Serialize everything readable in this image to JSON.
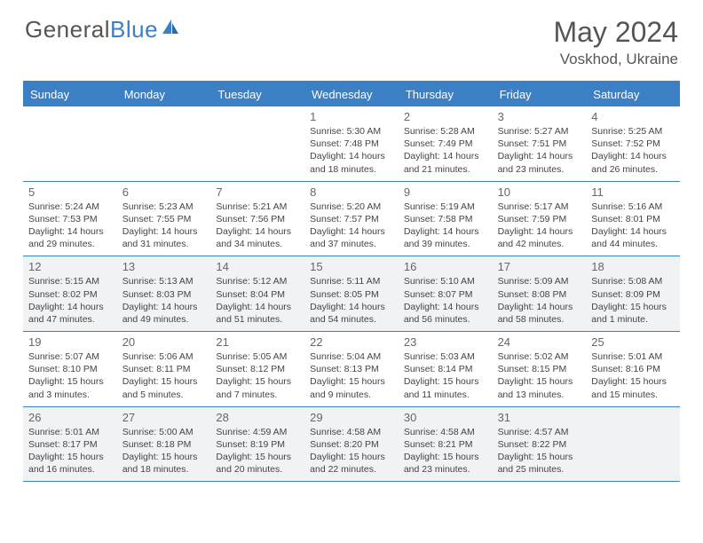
{
  "logo": {
    "text1": "General",
    "text2": "Blue"
  },
  "title": {
    "month": "May 2024",
    "location": "Voskhod, Ukraine"
  },
  "colors": {
    "accent": "#3b7fc4",
    "shade": "#f1f2f4",
    "text": "#555555"
  },
  "dayHeaders": [
    "Sunday",
    "Monday",
    "Tuesday",
    "Wednesday",
    "Thursday",
    "Friday",
    "Saturday"
  ],
  "weeks": [
    [
      {
        "day": "",
        "sunrise": "",
        "sunset": "",
        "daylight": "",
        "shade": false
      },
      {
        "day": "",
        "sunrise": "",
        "sunset": "",
        "daylight": "",
        "shade": false
      },
      {
        "day": "",
        "sunrise": "",
        "sunset": "",
        "daylight": "",
        "shade": false
      },
      {
        "day": "1",
        "sunrise": "Sunrise: 5:30 AM",
        "sunset": "Sunset: 7:48 PM",
        "daylight": "Daylight: 14 hours and 18 minutes.",
        "shade": false
      },
      {
        "day": "2",
        "sunrise": "Sunrise: 5:28 AM",
        "sunset": "Sunset: 7:49 PM",
        "daylight": "Daylight: 14 hours and 21 minutes.",
        "shade": false
      },
      {
        "day": "3",
        "sunrise": "Sunrise: 5:27 AM",
        "sunset": "Sunset: 7:51 PM",
        "daylight": "Daylight: 14 hours and 23 minutes.",
        "shade": false
      },
      {
        "day": "4",
        "sunrise": "Sunrise: 5:25 AM",
        "sunset": "Sunset: 7:52 PM",
        "daylight": "Daylight: 14 hours and 26 minutes.",
        "shade": false
      }
    ],
    [
      {
        "day": "5",
        "sunrise": "Sunrise: 5:24 AM",
        "sunset": "Sunset: 7:53 PM",
        "daylight": "Daylight: 14 hours and 29 minutes.",
        "shade": false
      },
      {
        "day": "6",
        "sunrise": "Sunrise: 5:23 AM",
        "sunset": "Sunset: 7:55 PM",
        "daylight": "Daylight: 14 hours and 31 minutes.",
        "shade": false
      },
      {
        "day": "7",
        "sunrise": "Sunrise: 5:21 AM",
        "sunset": "Sunset: 7:56 PM",
        "daylight": "Daylight: 14 hours and 34 minutes.",
        "shade": false
      },
      {
        "day": "8",
        "sunrise": "Sunrise: 5:20 AM",
        "sunset": "Sunset: 7:57 PM",
        "daylight": "Daylight: 14 hours and 37 minutes.",
        "shade": false
      },
      {
        "day": "9",
        "sunrise": "Sunrise: 5:19 AM",
        "sunset": "Sunset: 7:58 PM",
        "daylight": "Daylight: 14 hours and 39 minutes.",
        "shade": false
      },
      {
        "day": "10",
        "sunrise": "Sunrise: 5:17 AM",
        "sunset": "Sunset: 7:59 PM",
        "daylight": "Daylight: 14 hours and 42 minutes.",
        "shade": false
      },
      {
        "day": "11",
        "sunrise": "Sunrise: 5:16 AM",
        "sunset": "Sunset: 8:01 PM",
        "daylight": "Daylight: 14 hours and 44 minutes.",
        "shade": false
      }
    ],
    [
      {
        "day": "12",
        "sunrise": "Sunrise: 5:15 AM",
        "sunset": "Sunset: 8:02 PM",
        "daylight": "Daylight: 14 hours and 47 minutes.",
        "shade": true
      },
      {
        "day": "13",
        "sunrise": "Sunrise: 5:13 AM",
        "sunset": "Sunset: 8:03 PM",
        "daylight": "Daylight: 14 hours and 49 minutes.",
        "shade": true
      },
      {
        "day": "14",
        "sunrise": "Sunrise: 5:12 AM",
        "sunset": "Sunset: 8:04 PM",
        "daylight": "Daylight: 14 hours and 51 minutes.",
        "shade": true
      },
      {
        "day": "15",
        "sunrise": "Sunrise: 5:11 AM",
        "sunset": "Sunset: 8:05 PM",
        "daylight": "Daylight: 14 hours and 54 minutes.",
        "shade": true
      },
      {
        "day": "16",
        "sunrise": "Sunrise: 5:10 AM",
        "sunset": "Sunset: 8:07 PM",
        "daylight": "Daylight: 14 hours and 56 minutes.",
        "shade": true
      },
      {
        "day": "17",
        "sunrise": "Sunrise: 5:09 AM",
        "sunset": "Sunset: 8:08 PM",
        "daylight": "Daylight: 14 hours and 58 minutes.",
        "shade": true
      },
      {
        "day": "18",
        "sunrise": "Sunrise: 5:08 AM",
        "sunset": "Sunset: 8:09 PM",
        "daylight": "Daylight: 15 hours and 1 minute.",
        "shade": true
      }
    ],
    [
      {
        "day": "19",
        "sunrise": "Sunrise: 5:07 AM",
        "sunset": "Sunset: 8:10 PM",
        "daylight": "Daylight: 15 hours and 3 minutes.",
        "shade": false
      },
      {
        "day": "20",
        "sunrise": "Sunrise: 5:06 AM",
        "sunset": "Sunset: 8:11 PM",
        "daylight": "Daylight: 15 hours and 5 minutes.",
        "shade": false
      },
      {
        "day": "21",
        "sunrise": "Sunrise: 5:05 AM",
        "sunset": "Sunset: 8:12 PM",
        "daylight": "Daylight: 15 hours and 7 minutes.",
        "shade": false
      },
      {
        "day": "22",
        "sunrise": "Sunrise: 5:04 AM",
        "sunset": "Sunset: 8:13 PM",
        "daylight": "Daylight: 15 hours and 9 minutes.",
        "shade": false
      },
      {
        "day": "23",
        "sunrise": "Sunrise: 5:03 AM",
        "sunset": "Sunset: 8:14 PM",
        "daylight": "Daylight: 15 hours and 11 minutes.",
        "shade": false
      },
      {
        "day": "24",
        "sunrise": "Sunrise: 5:02 AM",
        "sunset": "Sunset: 8:15 PM",
        "daylight": "Daylight: 15 hours and 13 minutes.",
        "shade": false
      },
      {
        "day": "25",
        "sunrise": "Sunrise: 5:01 AM",
        "sunset": "Sunset: 8:16 PM",
        "daylight": "Daylight: 15 hours and 15 minutes.",
        "shade": false
      }
    ],
    [
      {
        "day": "26",
        "sunrise": "Sunrise: 5:01 AM",
        "sunset": "Sunset: 8:17 PM",
        "daylight": "Daylight: 15 hours and 16 minutes.",
        "shade": true
      },
      {
        "day": "27",
        "sunrise": "Sunrise: 5:00 AM",
        "sunset": "Sunset: 8:18 PM",
        "daylight": "Daylight: 15 hours and 18 minutes.",
        "shade": true
      },
      {
        "day": "28",
        "sunrise": "Sunrise: 4:59 AM",
        "sunset": "Sunset: 8:19 PM",
        "daylight": "Daylight: 15 hours and 20 minutes.",
        "shade": true
      },
      {
        "day": "29",
        "sunrise": "Sunrise: 4:58 AM",
        "sunset": "Sunset: 8:20 PM",
        "daylight": "Daylight: 15 hours and 22 minutes.",
        "shade": true
      },
      {
        "day": "30",
        "sunrise": "Sunrise: 4:58 AM",
        "sunset": "Sunset: 8:21 PM",
        "daylight": "Daylight: 15 hours and 23 minutes.",
        "shade": true
      },
      {
        "day": "31",
        "sunrise": "Sunrise: 4:57 AM",
        "sunset": "Sunset: 8:22 PM",
        "daylight": "Daylight: 15 hours and 25 minutes.",
        "shade": true
      },
      {
        "day": "",
        "sunrise": "",
        "sunset": "",
        "daylight": "",
        "shade": true
      }
    ]
  ]
}
